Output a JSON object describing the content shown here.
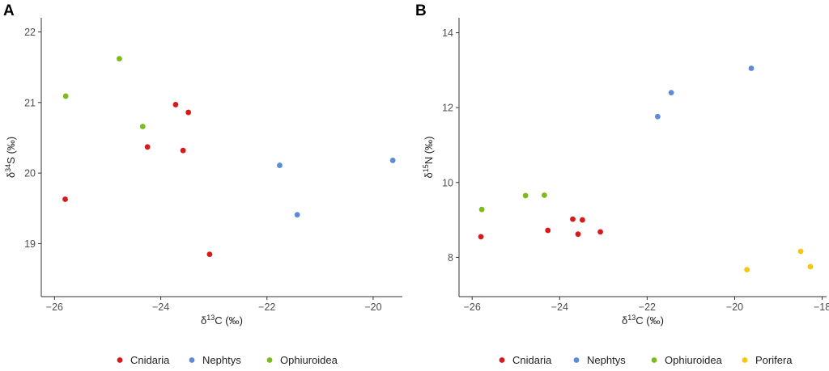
{
  "chart_data": [
    {
      "type": "scatter",
      "panel_label": "A",
      "xlabel": {
        "pre": "δ",
        "sup": "13",
        "post": "C (‰)"
      },
      "ylabel": {
        "pre": "δ",
        "sup": "34",
        "post": "S (‰)"
      },
      "xlim": [
        -26.25,
        -19.45
      ],
      "ylim": [
        18.25,
        22.2
      ],
      "xticks": [
        -26,
        -24,
        -22,
        -20
      ],
      "yticks": [
        19,
        20,
        21,
        22
      ],
      "grid": false,
      "series": [
        {
          "name": "Cnidaria",
          "color": "#d7191c",
          "points": [
            [
              -25.8,
              19.63
            ],
            [
              -24.25,
              20.37
            ],
            [
              -23.72,
              20.97
            ],
            [
              -23.48,
              20.86
            ],
            [
              -23.58,
              20.32
            ],
            [
              -23.08,
              18.85
            ]
          ]
        },
        {
          "name": "Nephtys",
          "color": "#5b8bd9",
          "points": [
            [
              -21.76,
              20.11
            ],
            [
              -21.43,
              19.41
            ],
            [
              -19.63,
              20.18
            ]
          ]
        },
        {
          "name": "Ophiuroidea",
          "color": "#7cbb1c",
          "points": [
            [
              -25.79,
              21.09
            ],
            [
              -24.78,
              21.62
            ],
            [
              -24.34,
              20.66
            ]
          ]
        }
      ],
      "legend": [
        "Cnidaria",
        "Nephtys",
        "Ophiuroidea"
      ],
      "legend_position": "bottom"
    },
    {
      "type": "scatter",
      "panel_label": "B",
      "xlabel": {
        "pre": "δ",
        "sup": "13",
        "post": "C (‰)"
      },
      "ylabel": {
        "pre": "δ",
        "sup": "15",
        "post": "N (‰)"
      },
      "xlim": [
        -26.3,
        -17.9
      ],
      "ylim": [
        6.95,
        14.4
      ],
      "xticks": [
        -26,
        -24,
        -22,
        -20,
        -18
      ],
      "yticks": [
        8,
        10,
        12,
        14
      ],
      "grid": false,
      "series": [
        {
          "name": "Cnidaria",
          "color": "#d7191c",
          "points": [
            [
              -25.8,
              8.55
            ],
            [
              -24.27,
              8.72
            ],
            [
              -23.7,
              9.02
            ],
            [
              -23.48,
              9.0
            ],
            [
              -23.58,
              8.62
            ],
            [
              -23.07,
              8.68
            ]
          ]
        },
        {
          "name": "Nephtys",
          "color": "#5b8bd9",
          "points": [
            [
              -21.76,
              11.76
            ],
            [
              -21.45,
              12.4
            ],
            [
              -19.62,
              13.05
            ]
          ]
        },
        {
          "name": "Ophiuroidea",
          "color": "#7cbb1c",
          "points": [
            [
              -25.78,
              9.28
            ],
            [
              -24.78,
              9.65
            ],
            [
              -24.35,
              9.66
            ]
          ]
        },
        {
          "name": "Porifera",
          "color": "#f5c710",
          "points": [
            [
              -19.72,
              7.67
            ],
            [
              -18.49,
              8.16
            ],
            [
              -18.27,
              7.75
            ]
          ]
        }
      ],
      "legend": [
        "Cnidaria",
        "Nephtys",
        "Ophiuroidea",
        "Porifera"
      ],
      "legend_position": "bottom"
    }
  ]
}
